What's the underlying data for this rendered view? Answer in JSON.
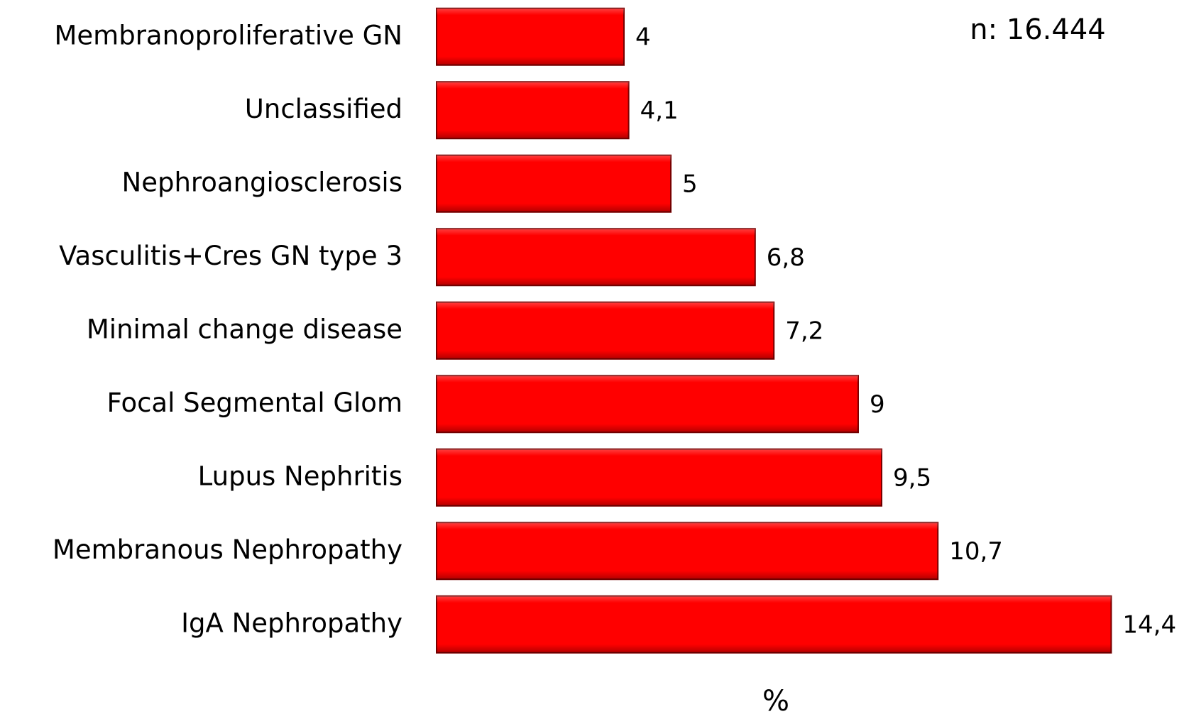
{
  "chart_data": {
    "type": "barh",
    "categories": [
      "Membranoproliferative GN",
      "Unclassified",
      "Nephroangiosclerosis",
      "Vasculitis+Cres GN type 3",
      "Minimal change disease",
      "Focal Segmental Glom",
      "Lupus Nephritis",
      "Membranous Nephropathy",
      "IgA Nephropathy"
    ],
    "values": [
      4,
      4.1,
      5,
      6.8,
      7.2,
      9,
      9.5,
      10.7,
      14.4
    ],
    "value_labels": [
      "4",
      "4,1",
      "5",
      "6,8",
      "7,2",
      "9",
      "9,5",
      "10,7",
      "14,4"
    ],
    "color": "#ff0000",
    "xlim": [
      0,
      16
    ],
    "xlabel": "%",
    "annotation": "n: 16.444"
  }
}
